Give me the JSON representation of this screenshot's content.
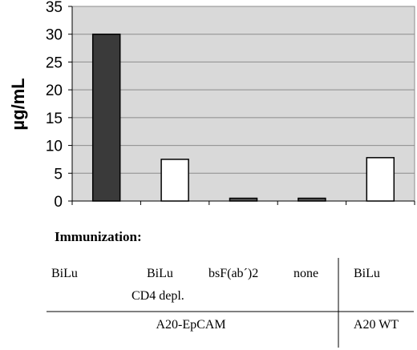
{
  "chart_data": {
    "type": "bar",
    "ylabel": "µg/mL",
    "ylim": [
      0,
      35
    ],
    "yticks": [
      0,
      5,
      10,
      15,
      20,
      25,
      30,
      35
    ],
    "grid": true,
    "categories": [
      "BiLu",
      "BiLu CD4 depl.",
      "bsF(ab´)2",
      "none",
      "BiLu"
    ],
    "values": [
      30,
      7.5,
      0.5,
      0.5,
      7.8
    ],
    "bar_colors": [
      "#3a3a3a",
      "#ffffff",
      "#555555",
      "#555555",
      "#ffffff"
    ],
    "plot_background": "#d9d9d9"
  },
  "caption": {
    "heading": "Immunization:",
    "labels": [
      {
        "line1": "BiLu",
        "line2": ""
      },
      {
        "line1": "BiLu",
        "line2": "CD4 depl."
      },
      {
        "line1": "bsF(ab´)2",
        "line2": ""
      },
      {
        "line1": "none",
        "line2": ""
      },
      {
        "line1": "BiLu",
        "line2": ""
      }
    ],
    "groups": [
      "A20-EpCAM",
      "A20 WT"
    ]
  }
}
